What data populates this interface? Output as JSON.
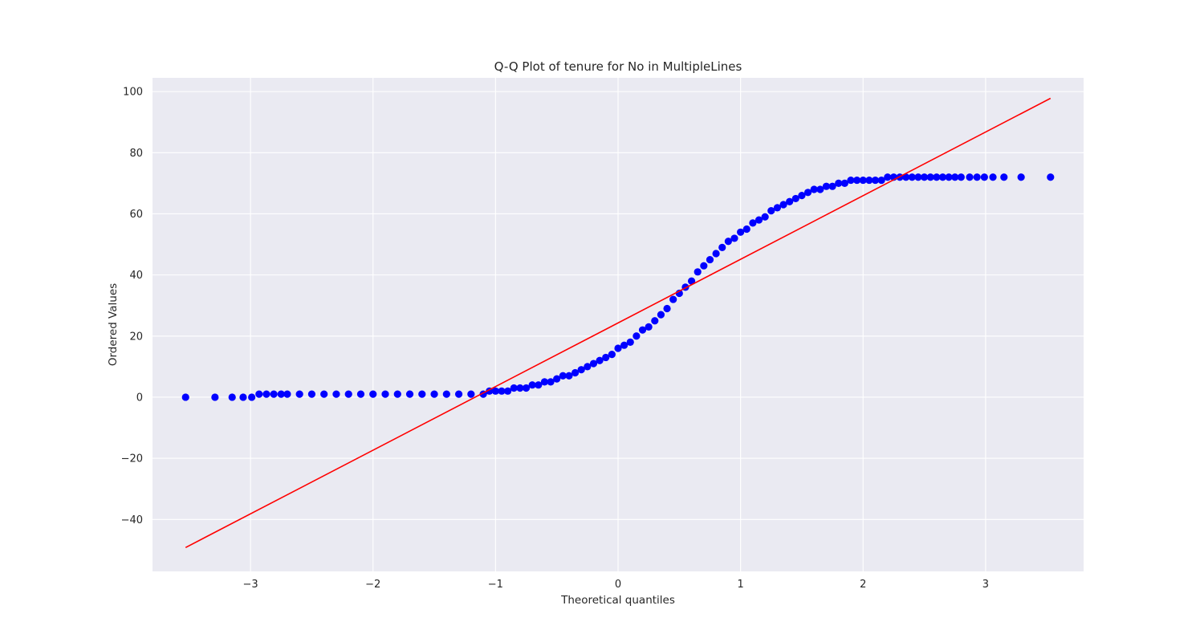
{
  "chart_data": {
    "type": "scatter",
    "title": "Q-Q Plot of tenure for No in MultipleLines",
    "xlabel": "Theoretical quantiles",
    "ylabel": "Ordered Values",
    "xlim": [
      -3.8,
      3.8
    ],
    "ylim": [
      -57,
      104.5
    ],
    "xticks": [
      -3,
      -2,
      -1,
      0,
      1,
      2,
      3
    ],
    "xtick_labels": [
      "−3",
      "−2",
      "−1",
      "0",
      "1",
      "2",
      "3"
    ],
    "yticks": [
      -40,
      -20,
      0,
      20,
      40,
      60,
      80,
      100
    ],
    "ytick_labels": [
      "−40",
      "−20",
      "0",
      "20",
      "40",
      "60",
      "80",
      "100"
    ],
    "grid": true,
    "background": "#eaeaf2",
    "series": [
      {
        "kind": "points",
        "color": "#0000ff",
        "points": [
          [
            -3.53,
            0
          ],
          [
            -3.29,
            0
          ],
          [
            -3.15,
            0
          ],
          [
            -3.06,
            0
          ],
          [
            -2.99,
            0
          ],
          [
            -2.93,
            1
          ],
          [
            -2.87,
            1
          ],
          [
            -2.81,
            1
          ],
          [
            -2.75,
            1
          ],
          [
            -2.7,
            1
          ],
          [
            -2.6,
            1
          ],
          [
            -2.5,
            1
          ],
          [
            -2.4,
            1
          ],
          [
            -2.3,
            1
          ],
          [
            -2.2,
            1
          ],
          [
            -2.1,
            1
          ],
          [
            -2.0,
            1
          ],
          [
            -1.9,
            1
          ],
          [
            -1.8,
            1
          ],
          [
            -1.7,
            1
          ],
          [
            -1.6,
            1
          ],
          [
            -1.5,
            1
          ],
          [
            -1.4,
            1
          ],
          [
            -1.3,
            1
          ],
          [
            -1.2,
            1
          ],
          [
            -1.1,
            1
          ],
          [
            -1.05,
            2
          ],
          [
            -1.0,
            2
          ],
          [
            -0.95,
            2
          ],
          [
            -0.9,
            2
          ],
          [
            -0.85,
            3
          ],
          [
            -0.8,
            3
          ],
          [
            -0.75,
            3
          ],
          [
            -0.7,
            4
          ],
          [
            -0.65,
            4
          ],
          [
            -0.6,
            5
          ],
          [
            -0.55,
            5
          ],
          [
            -0.5,
            6
          ],
          [
            -0.45,
            7
          ],
          [
            -0.4,
            7
          ],
          [
            -0.35,
            8
          ],
          [
            -0.3,
            9
          ],
          [
            -0.25,
            10
          ],
          [
            -0.2,
            11
          ],
          [
            -0.15,
            12
          ],
          [
            -0.1,
            13
          ],
          [
            -0.05,
            14
          ],
          [
            0.0,
            16
          ],
          [
            0.05,
            17
          ],
          [
            0.1,
            18
          ],
          [
            0.15,
            20
          ],
          [
            0.2,
            22
          ],
          [
            0.25,
            23
          ],
          [
            0.3,
            25
          ],
          [
            0.35,
            27
          ],
          [
            0.4,
            29
          ],
          [
            0.45,
            32
          ],
          [
            0.5,
            34
          ],
          [
            0.55,
            36
          ],
          [
            0.6,
            38
          ],
          [
            0.65,
            41
          ],
          [
            0.7,
            43
          ],
          [
            0.75,
            45
          ],
          [
            0.8,
            47
          ],
          [
            0.85,
            49
          ],
          [
            0.9,
            51
          ],
          [
            0.95,
            52
          ],
          [
            1.0,
            54
          ],
          [
            1.05,
            55
          ],
          [
            1.1,
            57
          ],
          [
            1.15,
            58
          ],
          [
            1.2,
            59
          ],
          [
            1.25,
            61
          ],
          [
            1.3,
            62
          ],
          [
            1.35,
            63
          ],
          [
            1.4,
            64
          ],
          [
            1.45,
            65
          ],
          [
            1.5,
            66
          ],
          [
            1.55,
            67
          ],
          [
            1.6,
            68
          ],
          [
            1.65,
            68
          ],
          [
            1.7,
            69
          ],
          [
            1.75,
            69
          ],
          [
            1.8,
            70
          ],
          [
            1.85,
            70
          ],
          [
            1.9,
            71
          ],
          [
            1.95,
            71
          ],
          [
            2.0,
            71
          ],
          [
            2.05,
            71
          ],
          [
            2.1,
            71
          ],
          [
            2.15,
            71
          ],
          [
            2.2,
            72
          ],
          [
            2.25,
            72
          ],
          [
            2.3,
            72
          ],
          [
            2.35,
            72
          ],
          [
            2.4,
            72
          ],
          [
            2.45,
            72
          ],
          [
            2.5,
            72
          ],
          [
            2.55,
            72
          ],
          [
            2.6,
            72
          ],
          [
            2.65,
            72
          ],
          [
            2.7,
            72
          ],
          [
            2.75,
            72
          ],
          [
            2.8,
            72
          ],
          [
            2.87,
            72
          ],
          [
            2.93,
            72
          ],
          [
            2.99,
            72
          ],
          [
            3.06,
            72
          ],
          [
            3.15,
            72
          ],
          [
            3.29,
            72
          ],
          [
            3.53,
            72
          ]
        ]
      },
      {
        "kind": "line",
        "color": "#ff0000",
        "x": [
          -3.53,
          3.53
        ],
        "y": [
          -49.2,
          97.8
        ]
      }
    ]
  }
}
